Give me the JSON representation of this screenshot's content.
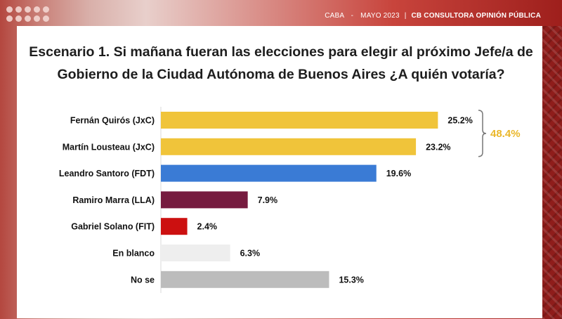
{
  "header": {
    "location": "CABA",
    "date": "MAYO 2023",
    "separator": "|",
    "brand": "CB CONSULTORA OPINIÓN PÚBLICA"
  },
  "colors": {
    "jxc": "#f0c43a",
    "fdt": "#3a7bd5",
    "lla": "#761b3f",
    "fit": "#cc1010",
    "blank": "#eeeeee",
    "unknown": "#bcbcbc",
    "total": "#eab72a"
  },
  "chart_data": {
    "type": "bar",
    "orientation": "horizontal",
    "title": "Escenario 1. Si mañana fueran las elecciones para elegir al próximo Jefe/a de Gobierno de la Ciudad Autónoma de Buenos Aires ¿A quién votaría?",
    "categories": [
      "Fernán Quirós (JxC)",
      "Martín Lousteau (JxC)",
      "Leandro Santoro (FDT)",
      "Ramiro Marra (LLA)",
      "Gabriel Solano (FIT)",
      "En blanco",
      "No se"
    ],
    "values": [
      25.2,
      23.2,
      19.6,
      7.9,
      2.4,
      6.3,
      15.3
    ],
    "value_labels": [
      "25.2%",
      "23.2%",
      "19.6%",
      "7.9%",
      "2.4%",
      "6.3%",
      "15.3%"
    ],
    "bar_colors": [
      "#f0c43a",
      "#f0c43a",
      "#3a7bd5",
      "#761b3f",
      "#cc1010",
      "#eeeeee",
      "#bcbcbc"
    ],
    "xlim": [
      0,
      30
    ],
    "grid": false,
    "annotation": {
      "label": "48.4%",
      "groups": [
        "Fernán Quirós (JxC)",
        "Martín Lousteau (JxC)"
      ]
    }
  }
}
